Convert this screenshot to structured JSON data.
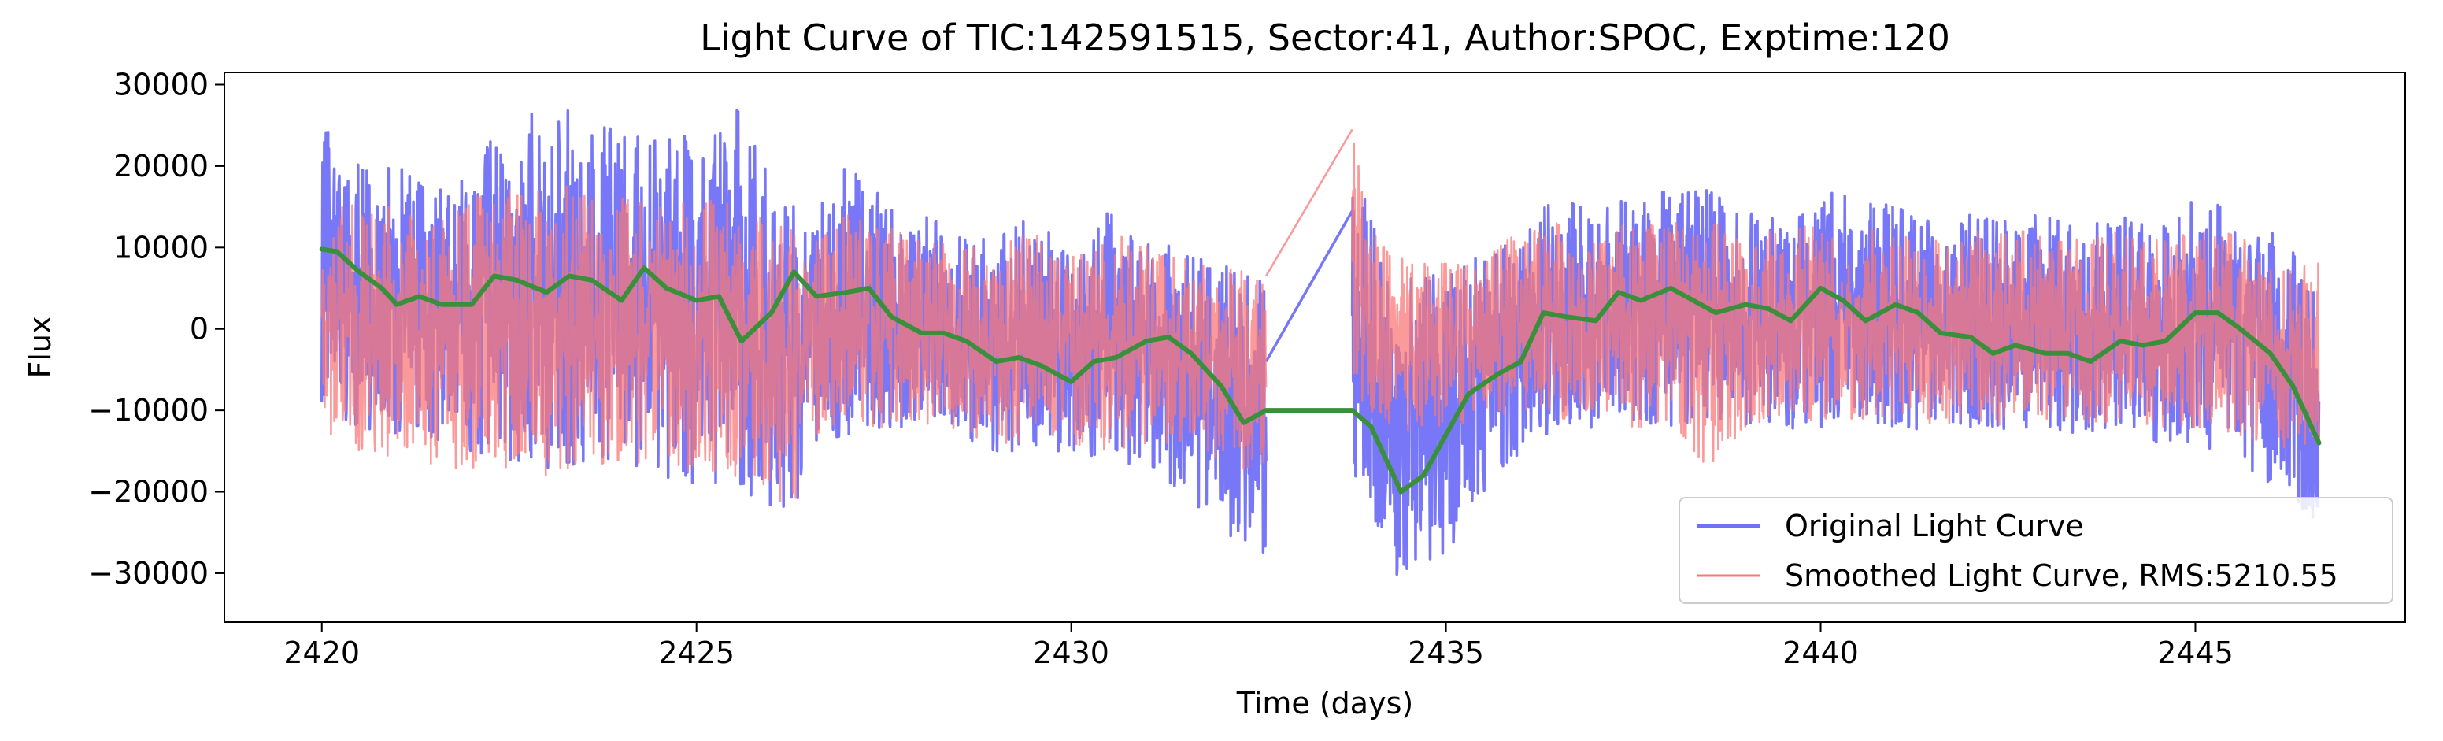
{
  "chart_data": {
    "type": "line",
    "title": "Light Curve of TIC:142591515, Sector:41, Author:SPOC, Exptime:120",
    "xlabel": "Time (days)",
    "ylabel": "Flux",
    "xlim": [
      2418.7,
      2447.8
    ],
    "ylim": [
      -36000,
      31500
    ],
    "x_ticks": [
      2420,
      2425,
      2430,
      2435,
      2440,
      2445
    ],
    "x_tick_labels": [
      "2420",
      "2425",
      "2430",
      "2435",
      "2440",
      "2445"
    ],
    "y_ticks": [
      30000,
      20000,
      10000,
      0,
      -10000,
      -20000,
      -30000
    ],
    "y_tick_labels": [
      "30000",
      "20000",
      "10000",
      "0",
      "−10000",
      "−20000",
      "−30000"
    ],
    "grid": false,
    "legend_position": "lower-right",
    "data_gap": [
      2432.6,
      2433.75
    ],
    "series": [
      {
        "name": "Original Light Curve",
        "color": "#7070f8",
        "style": "noisy-line",
        "envelope": {
          "x": [
            2420.0,
            2420.5,
            2421.0,
            2421.5,
            2422.0,
            2422.5,
            2423.0,
            2423.5,
            2424.0,
            2424.5,
            2425.0,
            2425.5,
            2426.0,
            2426.3,
            2426.5,
            2427.0,
            2427.5,
            2428.0,
            2428.5,
            2429.0,
            2429.5,
            2430.0,
            2430.5,
            2431.0,
            2431.5,
            2432.0,
            2432.3,
            2432.6,
            2433.75,
            2434.0,
            2434.3,
            2434.6,
            2435.0,
            2435.5,
            2436.0,
            2436.5,
            2437.0,
            2437.5,
            2438.0,
            2438.5,
            2439.0,
            2439.5,
            2440.0,
            2440.5,
            2441.0,
            2441.5,
            2442.0,
            2442.5,
            2443.0,
            2443.5,
            2444.0,
            2444.5,
            2445.0,
            2445.5,
            2446.0,
            2446.3,
            2446.65
          ],
          "upper": [
            25000,
            20000,
            20000,
            17000,
            22000,
            24000,
            28000,
            26000,
            24000,
            23000,
            24000,
            28000,
            18000,
            15000,
            13000,
            20000,
            16000,
            14000,
            12000,
            11000,
            14000,
            10000,
            15000,
            12000,
            9000,
            8000,
            7000,
            6000,
            20000,
            14000,
            8000,
            6000,
            7000,
            10000,
            13000,
            16000,
            15000,
            16000,
            17000,
            17000,
            14000,
            15000,
            17000,
            16000,
            15000,
            13000,
            14000,
            14000,
            14000,
            13000,
            14000,
            12000,
            16000,
            15000,
            12000,
            10000,
            8000
          ],
          "lower": [
            -10000,
            -12000,
            -13000,
            -14000,
            -15000,
            -16000,
            -17000,
            -17000,
            -16000,
            -18000,
            -19000,
            -20000,
            -22000,
            -23000,
            -14000,
            -13000,
            -12000,
            -12000,
            -14000,
            -15000,
            -15000,
            -15000,
            -16000,
            -17000,
            -20000,
            -25000,
            -29000,
            -33000,
            -20000,
            -25000,
            -30000,
            -31000,
            -28000,
            -20000,
            -15000,
            -13000,
            -12000,
            -12000,
            -12000,
            -11000,
            -12000,
            -13000,
            -12000,
            -11000,
            -12000,
            -13000,
            -12000,
            -13000,
            -12000,
            -13000,
            -12000,
            -14000,
            -14000,
            -16000,
            -19000,
            -21000,
            -24000
          ]
        },
        "gap_bridge": {
          "x": [
            2432.6,
            2433.75
          ],
          "y": [
            -4000,
            14500
          ]
        }
      },
      {
        "name": "Smoothed Light Curve, RMS:5210.55",
        "color": "#f87878",
        "style": "noisy-line",
        "envelope": {
          "x": [
            2420.0,
            2420.5,
            2421.0,
            2421.5,
            2422.0,
            2422.5,
            2423.0,
            2423.5,
            2424.0,
            2424.5,
            2425.0,
            2425.5,
            2426.0,
            2426.3,
            2426.5,
            2427.0,
            2427.5,
            2428.0,
            2428.5,
            2429.0,
            2429.5,
            2430.0,
            2430.5,
            2431.0,
            2431.5,
            2432.0,
            2432.3,
            2432.6,
            2433.75,
            2434.0,
            2434.3,
            2434.6,
            2435.0,
            2435.5,
            2436.0,
            2436.5,
            2437.0,
            2437.5,
            2438.0,
            2438.5,
            2439.0,
            2439.5,
            2440.0,
            2440.5,
            2441.0,
            2441.5,
            2442.0,
            2442.5,
            2443.0,
            2443.5,
            2444.0,
            2444.5,
            2445.0,
            2445.5,
            2446.0,
            2446.3,
            2446.65
          ],
          "upper": [
            16000,
            15000,
            15000,
            13000,
            16000,
            17000,
            18000,
            17000,
            16000,
            15000,
            16000,
            16000,
            13000,
            12000,
            10000,
            14000,
            13000,
            11000,
            10000,
            10000,
            12000,
            10000,
            12000,
            10000,
            9000,
            8000,
            7000,
            6000,
            24000,
            12000,
            9000,
            8000,
            8000,
            9000,
            12000,
            13000,
            12000,
            13000,
            13000,
            13000,
            12000,
            12000,
            13000,
            13000,
            12000,
            11000,
            12000,
            12000,
            12000,
            11000,
            12000,
            11000,
            12000,
            12000,
            10000,
            9000,
            8000
          ],
          "lower": [
            -14000,
            -15000,
            -17000,
            -18000,
            -17000,
            -17000,
            -18000,
            -17000,
            -16000,
            -17000,
            -18000,
            -18000,
            -20000,
            -24000,
            -13000,
            -12000,
            -12000,
            -12000,
            -13000,
            -14000,
            -14000,
            -14000,
            -15000,
            -14000,
            -14000,
            -16000,
            -18000,
            -18000,
            -8000,
            -10000,
            -12000,
            -13000,
            -12000,
            -12000,
            -11000,
            -11000,
            -11000,
            -12000,
            -12000,
            -17000,
            -12000,
            -12000,
            -11000,
            -11000,
            -11000,
            -12000,
            -11000,
            -12000,
            -11000,
            -12000,
            -11000,
            -12000,
            -12000,
            -13000,
            -14000,
            -15000,
            -16000
          ]
        },
        "gap_bridge": {
          "x": [
            2432.6,
            2433.75
          ],
          "y": [
            6500,
            24500
          ]
        }
      },
      {
        "name": "",
        "color": "#3a8f3a",
        "style": "smooth-line",
        "x": [
          2420.0,
          2420.2,
          2420.5,
          2420.8,
          2421.0,
          2421.3,
          2421.6,
          2422.0,
          2422.3,
          2422.6,
          2423.0,
          2423.3,
          2423.6,
          2424.0,
          2424.3,
          2424.6,
          2425.0,
          2425.3,
          2425.6,
          2426.0,
          2426.3,
          2426.6,
          2427.0,
          2427.3,
          2427.6,
          2428.0,
          2428.3,
          2428.6,
          2429.0,
          2429.3,
          2429.6,
          2430.0,
          2430.3,
          2430.6,
          2431.0,
          2431.3,
          2431.6,
          2432.0,
          2432.3,
          2432.6,
          2433.75,
          2434.0,
          2434.2,
          2434.4,
          2434.7,
          2435.0,
          2435.3,
          2435.7,
          2436.0,
          2436.3,
          2436.6,
          2437.0,
          2437.3,
          2437.6,
          2438.0,
          2438.3,
          2438.6,
          2439.0,
          2439.3,
          2439.6,
          2440.0,
          2440.3,
          2440.6,
          2441.0,
          2441.3,
          2441.6,
          2442.0,
          2442.3,
          2442.6,
          2443.0,
          2443.3,
          2443.6,
          2444.0,
          2444.3,
          2444.6,
          2445.0,
          2445.3,
          2445.6,
          2446.0,
          2446.3,
          2446.65
        ],
        "y": [
          9800,
          9500,
          7000,
          5000,
          3000,
          4000,
          3000,
          3000,
          6500,
          6000,
          4500,
          6500,
          6000,
          3500,
          7500,
          5000,
          3500,
          4000,
          -1500,
          2000,
          7000,
          4000,
          4500,
          5000,
          1500,
          -500,
          -500,
          -1500,
          -4000,
          -3500,
          -4500,
          -6500,
          -4000,
          -3500,
          -1500,
          -1000,
          -3000,
          -7000,
          -11500,
          -10000,
          -10000,
          -12000,
          -16000,
          -20000,
          -18000,
          -13000,
          -8000,
          -5500,
          -4000,
          2000,
          1500,
          1000,
          4500,
          3500,
          5000,
          3500,
          2000,
          3000,
          2500,
          1000,
          5000,
          3500,
          1000,
          3000,
          2000,
          -500,
          -1000,
          -3000,
          -2000,
          -3000,
          -3000,
          -4000,
          -1500,
          -2000,
          -1500,
          2000,
          2000,
          0,
          -3000,
          -7000,
          -14000
        ]
      }
    ]
  }
}
